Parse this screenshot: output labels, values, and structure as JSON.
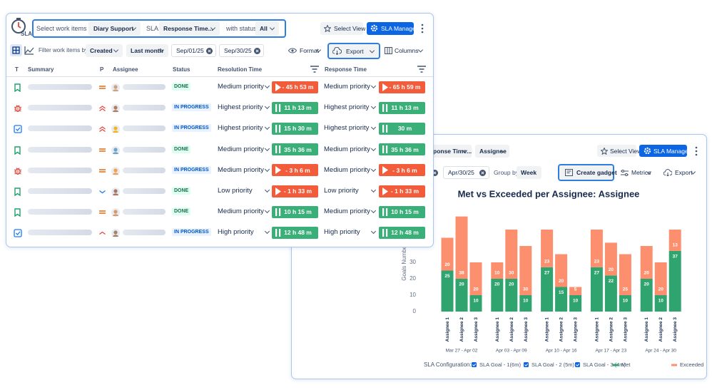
{
  "table_panel": {
    "logo": "SLA",
    "filters": {
      "select_label": "Select work items by:",
      "select_value": "Diary Support",
      "sla_label": "SLA:",
      "sla_value": "Response Time...",
      "status_label": "with status:",
      "status_value": "All"
    },
    "buttons": {
      "select_view": "Select View",
      "sla_manager": "SLA Manager"
    },
    "filter_bar": {
      "label": "Filter work items by:",
      "field": "Created",
      "period": "Last month",
      "from": "Sep/01/25",
      "to": "Sep/30/25",
      "format": "Format",
      "export": "Export",
      "columns": "Columns"
    },
    "table": {
      "headers": [
        "T",
        "Summary",
        "P",
        "Assignee",
        "Status",
        "Resolution Time",
        "Response Time"
      ],
      "rows": [
        {
          "status": "DONE",
          "resolution_priority": "Medium priority",
          "resolution_time": "- 45 h 53 m",
          "response_priority": "Medium priority",
          "response_time": "- 65 h 59 m"
        },
        {
          "status": "IN PROGRESS",
          "resolution_priority": "Highest priority",
          "resolution_time": "11 h 13 m",
          "response_priority": "Highest priority",
          "response_time": "11 h 13 m"
        },
        {
          "status": "IN PROGRESS",
          "resolution_priority": "Highest priority",
          "resolution_time": "15 h 30 m",
          "response_priority": "Highest priority",
          "response_time": "30 m"
        },
        {
          "status": "DONE",
          "resolution_priority": "Medium priority",
          "resolution_time": "35 h 36 m",
          "response_priority": "Medium priority",
          "response_time": "35 h 36 m"
        },
        {
          "status": "IN PROGRESS",
          "resolution_priority": "Medium priority",
          "resolution_time": "- 3 h 6 m",
          "response_priority": "Medium priority",
          "response_time": "- 3 h 6 m"
        },
        {
          "status": "DONE",
          "resolution_priority": "Low priority",
          "resolution_time": "- 1 h 33 m",
          "response_priority": "Low priority",
          "response_time": "- 1 h 33 m"
        },
        {
          "status": "DONE",
          "resolution_priority": "Medium priority",
          "resolution_time": "10 h 15 m",
          "response_priority": "Medium priority",
          "response_time": "10 h 15 m"
        },
        {
          "status": "IN PROGRESS",
          "resolution_priority": "High priority",
          "resolution_time": "12 h 48 m",
          "response_priority": "High priority",
          "response_time": "12 h 48 m"
        }
      ]
    }
  },
  "chart_panel": {
    "toolbar": {
      "sla_value": "ponse Time...",
      "group_field": "Assignee",
      "select_view": "Select View",
      "sla_manager": "SLA Manager",
      "date": "Apr/30/25",
      "group_by_label": "Group by",
      "group_by": "Week",
      "create_gadget": "Create gadget",
      "metrics": "Metrics",
      "export": "Export"
    },
    "legend_label": "SLA Configuration:",
    "goals": [
      "SLA Goal - 1(6m)",
      "SLA Goal - 2 (5m)",
      "SLA Goal - 3 (4m)"
    ]
  },
  "chart_data": {
    "type": "bar",
    "stacked": true,
    "title": "Met vs Exceeded per Assignee: Assignee",
    "y_label": "Goals Numbers",
    "groups": [
      "Mar 27 - Apr 02",
      "Apr 03 - Apr 09",
      "Apr 10 - Apr 16",
      "Apr 17 - Apr 23",
      "Apr 24 - Apr 30"
    ],
    "categories": [
      "Assignee 1",
      "Assignee 2",
      "Assignee 3",
      "Assignee 1",
      "Assignee 2",
      "Assignee 3",
      "Assignee 1",
      "Assignee 2",
      "Assignee 3",
      "Assignee 1",
      "Assignee 2",
      "Assignee 3",
      "Assignee 1",
      "Assignee 2",
      "Assignee 3"
    ],
    "series": [
      {
        "name": "Met",
        "color": "#2fa46f",
        "values": [
          25,
          20,
          10,
          20,
          20,
          10,
          27,
          15,
          10,
          27,
          22,
          10,
          20,
          10,
          37
        ]
      },
      {
        "name": "Exceeded",
        "color": "#fc8f6e",
        "values": [
          20,
          38,
          20,
          10,
          30,
          30,
          23,
          20,
          5,
          23,
          20,
          25,
          20,
          20,
          13
        ]
      }
    ],
    "ylim": [
      0,
      60
    ],
    "yticks": [
      0,
      10,
      20,
      30
    ]
  }
}
